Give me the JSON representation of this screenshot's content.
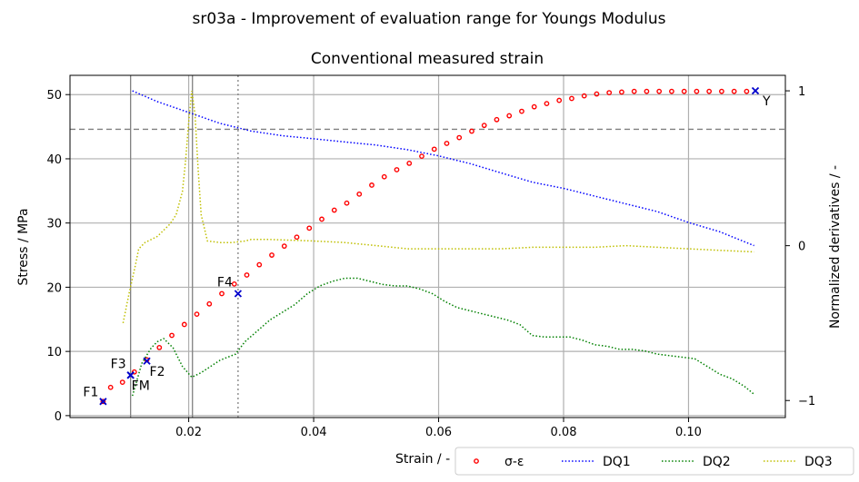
{
  "chart_data": {
    "type": "line",
    "title": "sr03a - Improvement of evaluation range for Youngs Modulus",
    "subtitle": "Conventional measured strain",
    "xlabel": "Strain / -",
    "ylabel": "Stress / MPa",
    "y2label": "Normalized derivatives / -",
    "xlim": [
      0.001,
      0.1155
    ],
    "ylim": [
      -0.3,
      53.0
    ],
    "y2lim": [
      -1.11,
      1.1
    ],
    "xticks": [
      0.02,
      0.04,
      0.06,
      0.08,
      0.1
    ],
    "xtick_labels": [
      "0.02",
      "0.04",
      "0.06",
      "0.08",
      "0.10"
    ],
    "yticks": [
      0,
      10,
      20,
      30,
      40,
      50
    ],
    "ytick_labels": [
      "0",
      "10",
      "20",
      "30",
      "40",
      "50"
    ],
    "y2ticks": [
      -1,
      0,
      1
    ],
    "y2tick_labels": [
      "−1",
      "0",
      "1"
    ],
    "grid": true,
    "legend_position": "bottom-right",
    "colors": {
      "sigma_eps": "#ff0000",
      "DQ1": "#0000ff",
      "DQ2": "#008000",
      "DQ3": "#bfbf00",
      "points": "#0000cc",
      "refline": "#808080"
    },
    "series": [
      {
        "name": "σ-ε",
        "axis": "left",
        "style": "points",
        "x": [
          0.0063,
          0.0075,
          0.0094,
          0.0113,
          0.0133,
          0.0153,
          0.0173,
          0.0193,
          0.0213,
          0.0233,
          0.0253,
          0.0273,
          0.0293,
          0.0313,
          0.0333,
          0.0353,
          0.0373,
          0.0393,
          0.0413,
          0.0433,
          0.0453,
          0.0473,
          0.0493,
          0.0513,
          0.0533,
          0.0553,
          0.0573,
          0.0593,
          0.0613,
          0.0633,
          0.0653,
          0.0673,
          0.0693,
          0.0713,
          0.0733,
          0.0753,
          0.0773,
          0.0793,
          0.0813,
          0.0833,
          0.0853,
          0.0873,
          0.0893,
          0.0913,
          0.0933,
          0.0953,
          0.0973,
          0.0993,
          0.1013,
          0.1033,
          0.1053,
          0.1073,
          0.1093
        ],
        "y": [
          2.2,
          4.4,
          5.2,
          6.8,
          8.7,
          10.6,
          12.5,
          14.2,
          15.8,
          17.4,
          19.0,
          20.5,
          21.9,
          23.5,
          25.0,
          26.4,
          27.8,
          29.2,
          30.6,
          32.0,
          33.1,
          34.5,
          35.9,
          37.2,
          38.3,
          39.3,
          40.4,
          41.5,
          42.4,
          43.3,
          44.3,
          45.2,
          46.1,
          46.7,
          47.4,
          48.1,
          48.6,
          49.1,
          49.4,
          49.8,
          50.1,
          50.3,
          50.4,
          50.5,
          50.5,
          50.5,
          50.5,
          50.5,
          50.5,
          50.5,
          50.5,
          50.5,
          50.5
        ]
      },
      {
        "name": "DQ1",
        "axis": "right",
        "style": "dotted",
        "x": [
          0.011,
          0.015,
          0.02,
          0.025,
          0.03,
          0.035,
          0.04,
          0.045,
          0.05,
          0.055,
          0.06,
          0.065,
          0.07,
          0.075,
          0.08,
          0.085,
          0.09,
          0.095,
          0.1,
          0.105,
          0.1105
        ],
        "y": [
          1.0,
          0.93,
          0.86,
          0.79,
          0.74,
          0.71,
          0.69,
          0.67,
          0.65,
          0.62,
          0.58,
          0.53,
          0.47,
          0.41,
          0.37,
          0.32,
          0.27,
          0.22,
          0.15,
          0.09,
          0.0
        ]
      },
      {
        "name": "DQ2",
        "axis": "right",
        "style": "dotted",
        "x": [
          0.011,
          0.0125,
          0.014,
          0.015,
          0.016,
          0.0175,
          0.019,
          0.0205,
          0.022,
          0.025,
          0.0275,
          0.029,
          0.031,
          0.033,
          0.035,
          0.037,
          0.039,
          0.041,
          0.043,
          0.045,
          0.047,
          0.049,
          0.051,
          0.053,
          0.055,
          0.057,
          0.059,
          0.061,
          0.063,
          0.065,
          0.067,
          0.069,
          0.071,
          0.073,
          0.075,
          0.077,
          0.079,
          0.081,
          0.083,
          0.085,
          0.087,
          0.089,
          0.091,
          0.093,
          0.095,
          0.097,
          0.099,
          0.101,
          0.103,
          0.105,
          0.107,
          0.109,
          0.1105
        ],
        "y": [
          -0.97,
          -0.76,
          -0.66,
          -0.62,
          -0.6,
          -0.66,
          -0.78,
          -0.85,
          -0.82,
          -0.74,
          -0.7,
          -0.62,
          -0.55,
          -0.48,
          -0.43,
          -0.38,
          -0.31,
          -0.26,
          -0.23,
          -0.21,
          -0.21,
          -0.23,
          -0.25,
          -0.26,
          -0.26,
          -0.28,
          -0.31,
          -0.36,
          -0.4,
          -0.42,
          -0.44,
          -0.46,
          -0.48,
          -0.51,
          -0.58,
          -0.59,
          -0.59,
          -0.59,
          -0.61,
          -0.64,
          -0.65,
          -0.67,
          -0.67,
          -0.68,
          -0.7,
          -0.71,
          -0.72,
          -0.73,
          -0.78,
          -0.83,
          -0.86,
          -0.91,
          -0.96
        ]
      },
      {
        "name": "DQ3",
        "axis": "right",
        "style": "dotted",
        "x": [
          0.0095,
          0.0105,
          0.0115,
          0.012,
          0.013,
          0.014,
          0.015,
          0.016,
          0.017,
          0.018,
          0.019,
          0.0195,
          0.02,
          0.0205,
          0.021,
          0.0215,
          0.022,
          0.023,
          0.025,
          0.027,
          0.029,
          0.03,
          0.033,
          0.04,
          0.045,
          0.05,
          0.055,
          0.06,
          0.065,
          0.07,
          0.075,
          0.08,
          0.085,
          0.09,
          0.095,
          0.1,
          0.105,
          0.1105
        ],
        "y": [
          -0.5,
          -0.3,
          -0.12,
          -0.02,
          0.02,
          0.04,
          0.06,
          0.1,
          0.14,
          0.2,
          0.35,
          0.55,
          0.8,
          1.0,
          0.85,
          0.5,
          0.2,
          0.03,
          0.02,
          0.02,
          0.03,
          0.04,
          0.04,
          0.03,
          0.02,
          0.0,
          -0.02,
          -0.02,
          -0.02,
          -0.02,
          -0.01,
          -0.01,
          -0.01,
          0.0,
          -0.01,
          -0.02,
          -0.03,
          -0.04
        ]
      }
    ],
    "refs": {
      "vlines": [
        {
          "x": 0.0107,
          "style": "solid"
        },
        {
          "x": 0.0206,
          "style": "solid-grid"
        },
        {
          "x": 0.0279,
          "style": "dotted"
        }
      ],
      "hline": {
        "y": 44.6,
        "style": "dashed"
      }
    },
    "annotations": [
      {
        "label": "F1",
        "x": 0.0063,
        "y": 2.2,
        "dx": -22,
        "dy": -6
      },
      {
        "label": "F3",
        "x": 0.0107,
        "y": 6.3,
        "dx": -22,
        "dy": -8
      },
      {
        "label": "FM",
        "x": 0.0107,
        "y": 6.3,
        "dx": 1,
        "dy": 16
      },
      {
        "label": "F2",
        "x": 0.0133,
        "y": 8.5,
        "dx": 3,
        "dy": 16
      },
      {
        "label": "F4",
        "x": 0.0279,
        "y": 19.0,
        "dx": -23,
        "dy": -8
      },
      {
        "label": "Y",
        "x": 0.1107,
        "y": 50.6,
        "dx": 8,
        "dy": 16
      }
    ],
    "legend": [
      "σ-ε",
      "DQ1",
      "DQ2",
      "DQ3"
    ]
  }
}
